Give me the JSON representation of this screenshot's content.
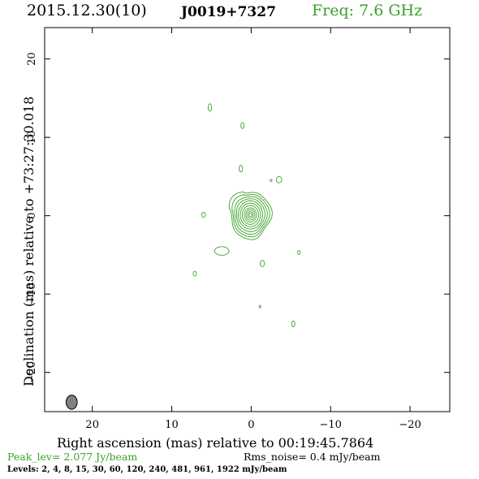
{
  "header": {
    "date": "2015.12.30(10)",
    "source": "J0019+7327",
    "freq": "Freq: 7.6 GHz"
  },
  "footer": {
    "peak": "Peak_lev=  2.077 Jy/beam",
    "rms": "Rms_noise=  0.4 mJy/beam",
    "levels": "Levels:   2,   4,   8,  15,  30,  60, 120, 240, 481, 961, 1922 mJy/beam"
  },
  "chart_data": {
    "type": "contour",
    "xlabel": "Right ascension (mas) relative to 00:19:45.7864",
    "ylabel": "Declination (mas) relative to +73:27:30.018",
    "xlim": [
      26,
      -25
    ],
    "ylim": [
      -25,
      24
    ],
    "x_ticks": [
      20,
      10,
      0,
      -10,
      -20
    ],
    "y_ticks": [
      20,
      10,
      0,
      -10,
      -20
    ],
    "x_tick_labels": [
      "20",
      "10",
      "0",
      "−10",
      "−20"
    ],
    "y_tick_labels": [
      "20",
      "10",
      "0",
      "−10",
      "−20"
    ],
    "contour_color": "#3aa02a",
    "levels_mJy": [
      2,
      4,
      8,
      15,
      30,
      60,
      120,
      240,
      481,
      961,
      1922
    ],
    "core": {
      "x": 0.1,
      "y": 0.1
    },
    "beam": {
      "x": 22.6,
      "y": -23.8,
      "major": 1.8,
      "minor": 1.4,
      "color": "#808080"
    },
    "components": [
      {
        "x": 5.2,
        "y": 13.8,
        "rx": 0.22,
        "ry": 0.48
      },
      {
        "x": 1.1,
        "y": 11.5,
        "rx": 0.2,
        "ry": 0.38
      },
      {
        "x": 1.3,
        "y": 6.0,
        "rx": 0.22,
        "ry": 0.42
      },
      {
        "x": -2.5,
        "y": 4.5,
        "rx": 0.12,
        "ry": 0.12
      },
      {
        "x": -3.5,
        "y": 4.6,
        "rx": 0.35,
        "ry": 0.4
      },
      {
        "x": 6.0,
        "y": 0.1,
        "rx": 0.25,
        "ry": 0.32
      },
      {
        "x": 3.7,
        "y": -4.5,
        "rx": 0.9,
        "ry": 0.55
      },
      {
        "x": -1.4,
        "y": -6.1,
        "rx": 0.28,
        "ry": 0.4
      },
      {
        "x": -6.0,
        "y": -4.7,
        "rx": 0.15,
        "ry": 0.25
      },
      {
        "x": 7.1,
        "y": -7.4,
        "rx": 0.2,
        "ry": 0.3
      },
      {
        "x": -1.1,
        "y": -11.6,
        "rx": 0.1,
        "ry": 0.16
      },
      {
        "x": -5.3,
        "y": -13.8,
        "rx": 0.2,
        "ry": 0.38
      }
    ]
  }
}
